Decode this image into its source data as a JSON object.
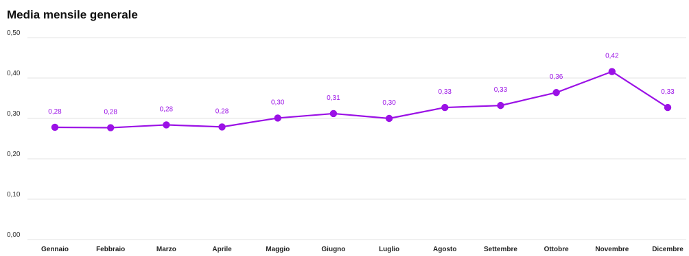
{
  "chart_data": {
    "type": "line",
    "title": "Media mensile generale",
    "xlabel": "",
    "ylabel": "",
    "categories": [
      "Gennaio",
      "Febbraio",
      "Marzo",
      "Aprile",
      "Maggio",
      "Giugno",
      "Luglio",
      "Agosto",
      "Settembre",
      "Ottobre",
      "Novembre",
      "Dicembre"
    ],
    "values": [
      0.278,
      0.277,
      0.284,
      0.279,
      0.301,
      0.312,
      0.3,
      0.327,
      0.332,
      0.364,
      0.416,
      0.327
    ],
    "data_labels": [
      "0,28",
      "0,28",
      "0,28",
      "0,28",
      "0,30",
      "0,31",
      "0,30",
      "0,33",
      "0,33",
      "0,36",
      "0,42",
      "0,33"
    ],
    "yticks": [
      "0,00",
      "0,10",
      "0,20",
      "0,30",
      "0,40",
      "0,50"
    ],
    "ytick_values": [
      0,
      0.1,
      0.2,
      0.3,
      0.4,
      0.5
    ],
    "ylim": [
      0,
      0.5
    ],
    "grid": true,
    "legend": "none",
    "colors": {
      "series": "#9b11e6",
      "grid": "#e3e3e3",
      "label": "#9b11e6"
    }
  }
}
